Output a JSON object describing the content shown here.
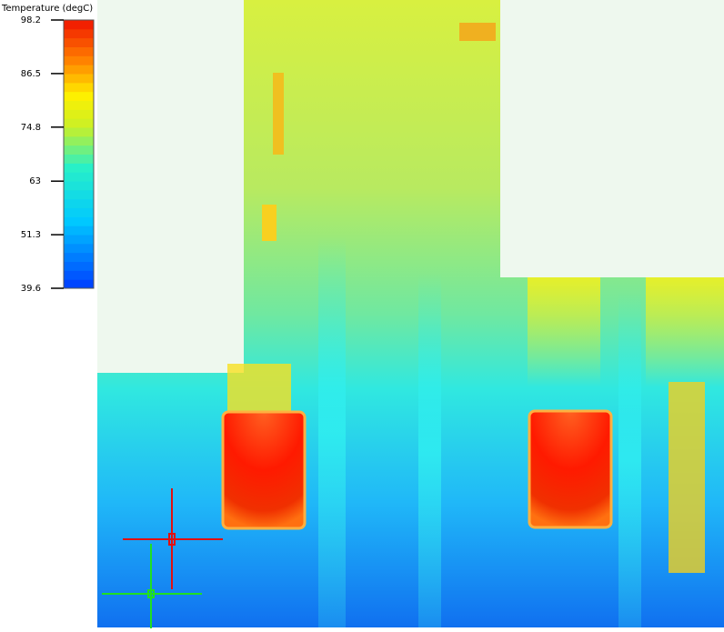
{
  "legend": {
    "title": "Temperature (degC)",
    "range": [
      39.6,
      98.2
    ],
    "ticks": [
      98.2,
      86.5,
      74.8,
      63,
      51.3,
      39.6
    ]
  }
}
